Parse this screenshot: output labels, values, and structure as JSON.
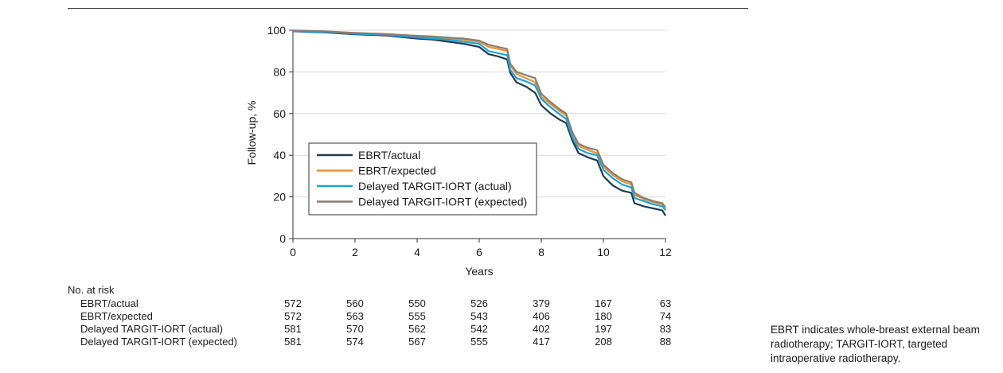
{
  "chart_data": {
    "type": "line",
    "title": "",
    "xlabel": "Years",
    "ylabel": "Follow-up, %",
    "xlim": [
      0,
      12
    ],
    "ylim": [
      0,
      100
    ],
    "x_ticks": [
      "0",
      "2",
      "4",
      "6",
      "8",
      "10",
      "12"
    ],
    "y_ticks": [
      "0",
      "20",
      "40",
      "60",
      "80",
      "100"
    ],
    "grid": "horizontal",
    "legend_position": "center-left",
    "series": [
      {
        "name": "EBRT/actual",
        "color": "#1f3b4d",
        "x": [
          0,
          0.5,
          1,
          1.5,
          2,
          3,
          4,
          4.5,
          5,
          5.5,
          6,
          6.3,
          6.6,
          6.9,
          7.0,
          7.2,
          7.5,
          7.8,
          8.0,
          8.3,
          8.6,
          8.8,
          9.0,
          9.2,
          9.5,
          9.8,
          10.0,
          10.3,
          10.6,
          10.9,
          11.0,
          11.3,
          11.6,
          11.9,
          12.0
        ],
        "y": [
          99.5,
          99.2,
          99.0,
          98.5,
          98.0,
          97.5,
          96.0,
          95.5,
          94.5,
          93.5,
          92.0,
          88.5,
          87.5,
          86.0,
          79.5,
          75.0,
          73.0,
          70.0,
          64.0,
          60.0,
          57.0,
          55.5,
          47.0,
          41.0,
          39.0,
          37.5,
          30.0,
          25.5,
          23.0,
          22.0,
          17.0,
          15.5,
          14.5,
          13.5,
          11.0
        ]
      },
      {
        "name": "EBRT/expected",
        "color": "#f0932b",
        "x": [
          0,
          0.5,
          1,
          1.5,
          2,
          3,
          4,
          4.5,
          5,
          5.5,
          6,
          6.3,
          6.6,
          6.9,
          7.0,
          7.2,
          7.5,
          7.8,
          8.0,
          8.3,
          8.6,
          8.8,
          9.0,
          9.2,
          9.5,
          9.8,
          10.0,
          10.3,
          10.6,
          10.9,
          11.0,
          11.3,
          11.6,
          11.9,
          12.0
        ],
        "y": [
          99.8,
          99.6,
          99.4,
          99.0,
          98.5,
          98.0,
          97.0,
          96.5,
          96.0,
          95.5,
          94.5,
          92.0,
          91.0,
          90.0,
          83.0,
          79.0,
          77.0,
          75.0,
          68.0,
          64.5,
          61.0,
          59.0,
          50.0,
          44.5,
          42.5,
          41.0,
          34.5,
          30.5,
          27.5,
          26.0,
          21.0,
          19.0,
          17.5,
          16.5,
          14.0
        ]
      },
      {
        "name": "Delayed TARGIT-IORT (actual)",
        "color": "#1aa3dc",
        "x": [
          0,
          0.5,
          1,
          1.5,
          2,
          3,
          4,
          4.5,
          5,
          5.5,
          6,
          6.3,
          6.6,
          6.9,
          7.0,
          7.2,
          7.5,
          7.8,
          8.0,
          8.3,
          8.6,
          8.8,
          9.0,
          9.2,
          9.5,
          9.8,
          10.0,
          10.3,
          10.6,
          10.9,
          11.0,
          11.3,
          11.6,
          11.9,
          12.0
        ],
        "y": [
          99.6,
          99.4,
          99.2,
          98.8,
          98.3,
          97.8,
          96.5,
          96.0,
          95.5,
          94.5,
          93.5,
          90.0,
          89.0,
          88.0,
          81.0,
          77.0,
          75.5,
          73.5,
          67.0,
          63.0,
          59.5,
          57.5,
          48.5,
          43.0,
          41.0,
          40.0,
          33.0,
          29.0,
          26.0,
          24.5,
          19.5,
          18.0,
          16.5,
          15.5,
          13.5
        ]
      },
      {
        "name": "Delayed TARGIT-IORT (expected)",
        "color": "#8c7b70",
        "x": [
          0,
          0.5,
          1,
          1.5,
          2,
          3,
          4,
          4.5,
          5,
          5.5,
          6,
          6.3,
          6.6,
          6.9,
          7.0,
          7.2,
          7.5,
          7.8,
          8.0,
          8.3,
          8.6,
          8.8,
          9.0,
          9.2,
          9.5,
          9.8,
          10.0,
          10.3,
          10.6,
          10.9,
          11.0,
          11.3,
          11.6,
          11.9,
          12.0
        ],
        "y": [
          99.9,
          99.7,
          99.5,
          99.1,
          98.7,
          98.2,
          97.3,
          97.0,
          96.5,
          96.0,
          95.0,
          93.0,
          92.0,
          91.0,
          84.0,
          80.0,
          78.5,
          77.0,
          69.5,
          65.5,
          62.0,
          60.0,
          51.0,
          45.5,
          43.5,
          42.5,
          35.5,
          31.5,
          28.5,
          27.0,
          22.0,
          19.5,
          18.0,
          17.0,
          15.0
        ]
      }
    ],
    "at_risk": {
      "title": "No. at risk",
      "x": [
        "0",
        "2",
        "4",
        "6",
        "8",
        "10",
        "12"
      ],
      "rows": [
        {
          "label": "EBRT/actual",
          "values": [
            "572",
            "560",
            "550",
            "526",
            "379",
            "167",
            "63"
          ]
        },
        {
          "label": "EBRT/expected",
          "values": [
            "572",
            "563",
            "555",
            "543",
            "406",
            "180",
            "74"
          ]
        },
        {
          "label": "Delayed TARGIT-IORT (actual)",
          "values": [
            "581",
            "570",
            "562",
            "542",
            "402",
            "197",
            "83"
          ]
        },
        {
          "label": "Delayed TARGIT-IORT (expected)",
          "values": [
            "581",
            "574",
            "567",
            "555",
            "417",
            "208",
            "88"
          ]
        }
      ]
    }
  },
  "caption": "EBRT indicates whole-breast external beam radiotherapy; TARGIT-IORT, targeted intraoperative radiotherapy."
}
